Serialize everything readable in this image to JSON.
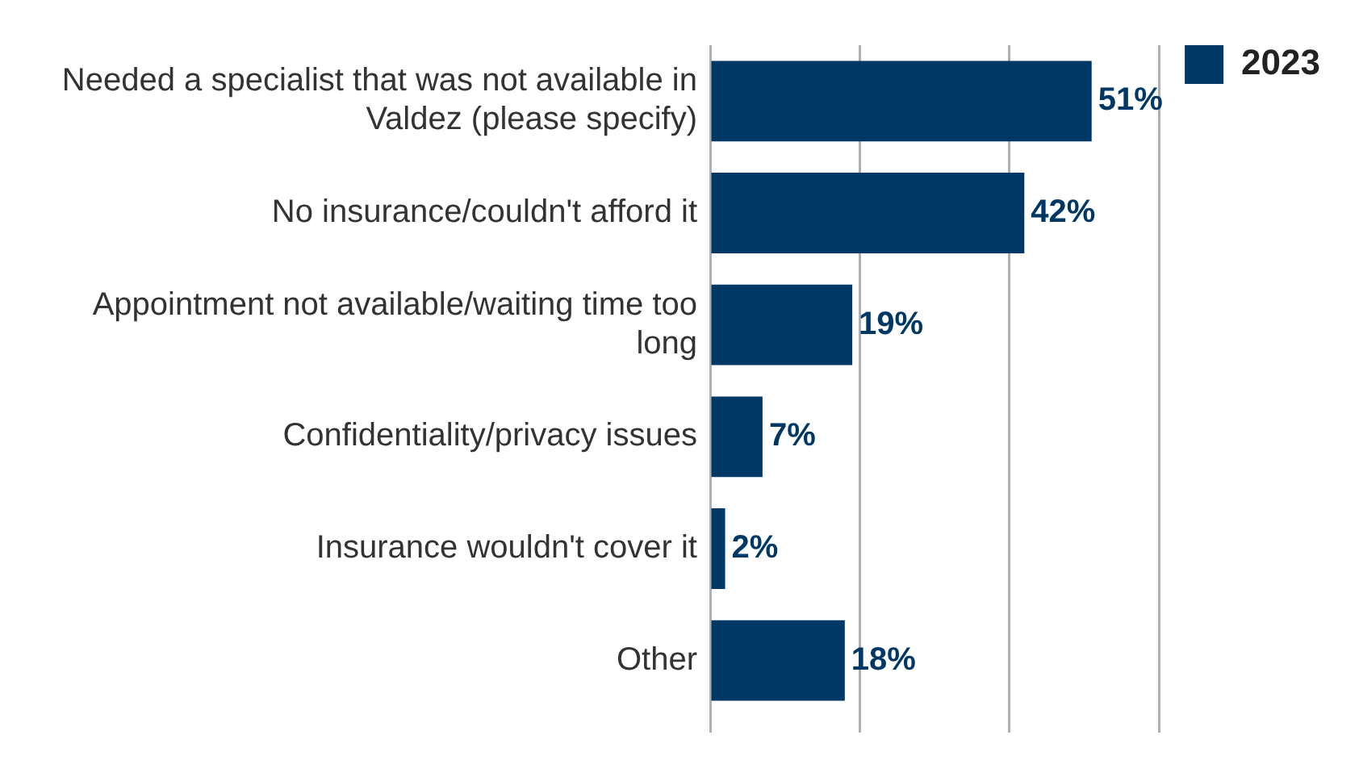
{
  "chart_data": {
    "type": "bar",
    "orientation": "horizontal",
    "categories": [
      "Needed a specialist that was not available in Valdez (please specify)",
      "No insurance/couldn't afford it",
      "Appointment not available/waiting time too long",
      "Confidentiality/privacy issues",
      "Insurance wouldn't cover it",
      "Other"
    ],
    "series": [
      {
        "name": "2023",
        "color": "#003865",
        "values": [
          51,
          42,
          19,
          7,
          2,
          18
        ],
        "value_labels": [
          "51%",
          "42%",
          "19%",
          "7%",
          "2%",
          "18%"
        ]
      }
    ],
    "xlim": [
      0,
      60
    ],
    "xticks": [
      {
        "value": 0,
        "label": null
      },
      {
        "value": 20,
        "label": null
      },
      {
        "value": 40,
        "label": null
      },
      {
        "value": 60,
        "label": null
      }
    ],
    "tick_labels": "y",
    "grid": "x",
    "legend": "top right"
  }
}
